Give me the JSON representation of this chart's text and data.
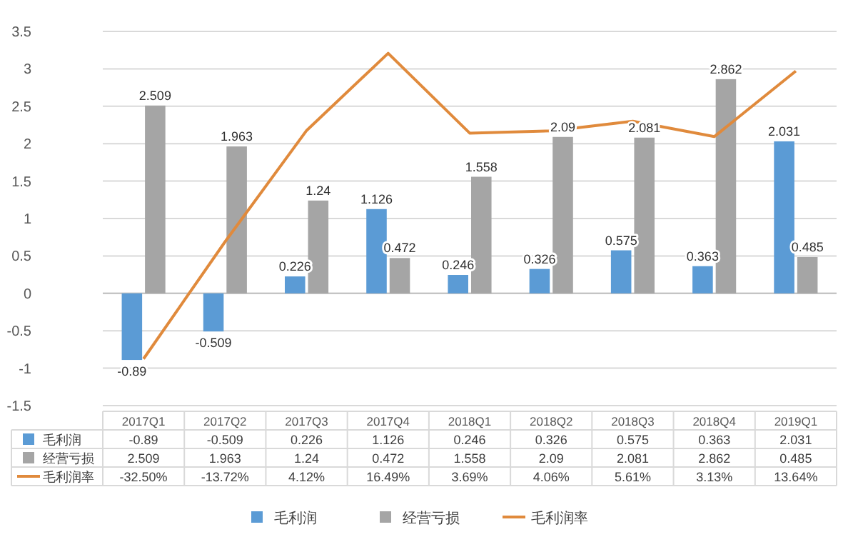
{
  "chart_data": {
    "type": "bar",
    "categories": [
      "2017Q1",
      "2017Q2",
      "2017Q3",
      "2017Q4",
      "2018Q1",
      "2018Q2",
      "2018Q3",
      "2018Q4",
      "2019Q1"
    ],
    "series": [
      {
        "name": "毛利润",
        "color": "#5b9bd5",
        "values": [
          -0.89,
          -0.509,
          0.226,
          1.126,
          0.246,
          0.326,
          0.575,
          0.363,
          2.031
        ],
        "value_labels": [
          "-0.89",
          "-0.509",
          "0.226",
          "1.126",
          "0.246",
          "0.326",
          "0.575",
          "0.363",
          "2.031"
        ]
      },
      {
        "name": "经营亏损",
        "color": "#a5a5a5",
        "values": [
          2.509,
          1.963,
          1.24,
          0.472,
          1.558,
          2.09,
          2.081,
          2.862,
          0.485
        ],
        "value_labels": [
          "2.509",
          "1.963",
          "1.24",
          "0.472",
          "1.558",
          "2.09",
          "2.081",
          "2.862",
          "0.485"
        ]
      },
      {
        "name": "毛利润率",
        "type": "line",
        "axis": "y2",
        "color": "#e08a3c",
        "values": [
          -32.5,
          -13.72,
          4.12,
          16.49,
          3.69,
          4.06,
          5.61,
          3.13,
          13.64
        ],
        "value_labels": [
          "-32.50%",
          "-13.72%",
          "4.12%",
          "16.49%",
          "3.69%",
          "4.06%",
          "5.61%",
          "3.13%",
          "13.64%"
        ]
      }
    ],
    "ylim": [
      -1.5,
      3.5
    ],
    "yticks": [
      -1.5,
      -1,
      -0.5,
      0,
      0.5,
      1,
      1.5,
      2,
      2.5,
      3,
      3.5
    ],
    "y2lim": [
      -40,
      20
    ],
    "grid": "y",
    "legend": "bottom",
    "marker": "none",
    "line_style": "solid"
  }
}
